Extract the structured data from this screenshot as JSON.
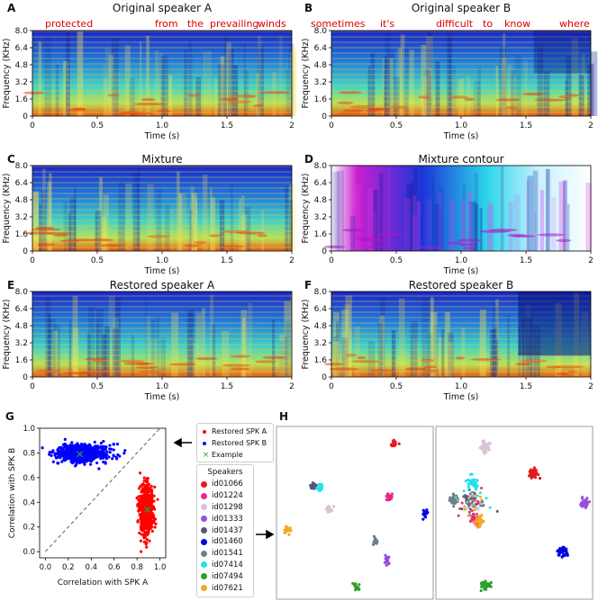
{
  "panels": {
    "A": {
      "letter": "A",
      "title": "Original speaker A",
      "words": [
        "protected",
        "from",
        "the",
        "prevailing",
        "winds"
      ]
    },
    "B": {
      "letter": "B",
      "title": "Original speaker B",
      "words": [
        "sometimes",
        "it's",
        "difficult",
        "to",
        "know",
        "where"
      ]
    },
    "C": {
      "letter": "C",
      "title": "Mixture"
    },
    "D": {
      "letter": "D",
      "title": "Mixture contour"
    },
    "E": {
      "letter": "E",
      "title": "Restored speaker A"
    },
    "F": {
      "letter": "F",
      "title": "Restored speaker B"
    },
    "G": {
      "letter": "G"
    },
    "H": {
      "letter": "H"
    }
  },
  "axes": {
    "ylabel": "Frequency (KHz)",
    "xlabel": "Time (s)",
    "yticks": [
      "0",
      "1.6",
      "3.2",
      "4.8",
      "6.4",
      "8.0"
    ],
    "xticks": [
      "0",
      "0.5",
      "1.0",
      "1.5",
      "2"
    ]
  },
  "scatter": {
    "xlabel": "Correlation with SPK A",
    "ylabel": "Correlation with SPK B",
    "xticks": [
      "0.0",
      "0.2",
      "0.4",
      "0.6",
      "0.8",
      "1.0"
    ],
    "yticks": [
      "0.0",
      "0.2",
      "0.4",
      "0.6",
      "0.8",
      "1.0"
    ],
    "legend": [
      {
        "label": "Restored SPK A",
        "color": "#ff0000",
        "marker": "dot"
      },
      {
        "label": "Restored SPK B",
        "color": "#0000ff",
        "marker": "dot"
      },
      {
        "label": "Example",
        "color": "#2ca02c",
        "marker": "x"
      }
    ]
  },
  "speakers": {
    "title": "Speakers",
    "items": [
      {
        "id": "id01066",
        "color": "#e41a1c"
      },
      {
        "id": "id01224",
        "color": "#e7298a"
      },
      {
        "id": "id01298",
        "color": "#d9c4d6"
      },
      {
        "id": "id01333",
        "color": "#9b4fd6"
      },
      {
        "id": "id01437",
        "color": "#56567a"
      },
      {
        "id": "id01460",
        "color": "#0000e0"
      },
      {
        "id": "id01541",
        "color": "#6f7f8c"
      },
      {
        "id": "id07414",
        "color": "#22e1f0"
      },
      {
        "id": "id07494",
        "color": "#2ca02c"
      },
      {
        "id": "id07621",
        "color": "#f5a623"
      }
    ]
  },
  "chart_data": [
    {
      "type": "scatter",
      "title": "",
      "xlabel": "Correlation with SPK A",
      "ylabel": "Correlation with SPK B",
      "xlim": [
        -0.05,
        1.05
      ],
      "ylim": [
        -0.05,
        1.0
      ],
      "series": [
        {
          "name": "Restored SPK A",
          "color": "#ff0000",
          "center": [
            0.88,
            0.33
          ],
          "spread": [
            0.06,
            0.2
          ]
        },
        {
          "name": "Restored SPK B",
          "color": "#0000ff",
          "center": [
            0.32,
            0.8
          ],
          "spread": [
            0.22,
            0.07
          ]
        },
        {
          "name": "Example",
          "color": "#2ca02c",
          "points": [
            [
              0.3,
              0.79
            ],
            [
              0.89,
              0.34
            ]
          ]
        }
      ],
      "reference_line": "y = x (dashed)"
    }
  ]
}
